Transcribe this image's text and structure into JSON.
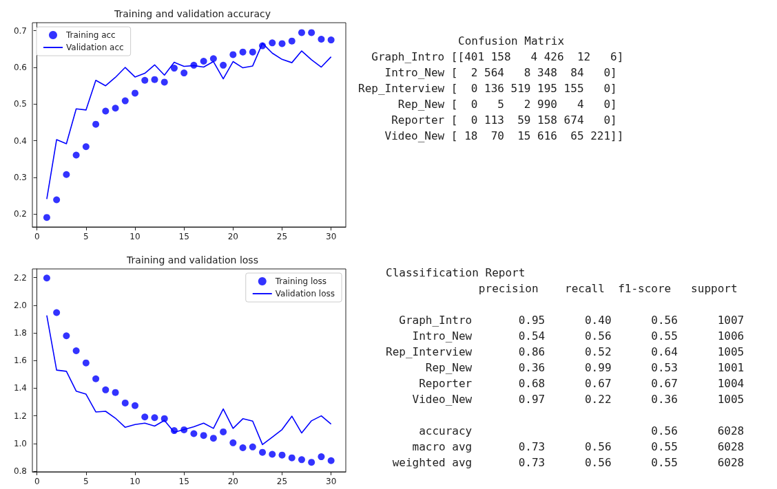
{
  "chart_data": [
    {
      "type": "line",
      "title": "Training and validation accuracy",
      "x": [
        1,
        2,
        3,
        4,
        5,
        6,
        7,
        8,
        9,
        10,
        11,
        12,
        13,
        14,
        15,
        16,
        17,
        18,
        19,
        20,
        21,
        22,
        23,
        24,
        25,
        26,
        27,
        28,
        29,
        30
      ],
      "series": [
        {
          "name": "Training acc",
          "type": "scatter",
          "marker": "circle",
          "color": "#0000ff",
          "values": [
            0.191,
            0.239,
            0.308,
            0.361,
            0.384,
            0.445,
            0.481,
            0.489,
            0.509,
            0.53,
            0.565,
            0.567,
            0.56,
            0.598,
            0.585,
            0.606,
            0.617,
            0.624,
            0.606,
            0.635,
            0.642,
            0.642,
            0.659,
            0.667,
            0.665,
            0.672,
            0.695,
            0.695,
            0.677,
            0.675
          ]
        },
        {
          "name": "Validation acc",
          "type": "line",
          "marker": "none",
          "color": "#0000ff",
          "values": [
            0.241,
            0.403,
            0.392,
            0.487,
            0.484,
            0.565,
            0.55,
            0.573,
            0.6,
            0.574,
            0.584,
            0.607,
            0.579,
            0.614,
            0.603,
            0.605,
            0.601,
            0.616,
            0.569,
            0.616,
            0.599,
            0.604,
            0.666,
            0.639,
            0.622,
            0.613,
            0.645,
            0.621,
            0.601,
            0.629
          ]
        }
      ],
      "xlim": [
        -0.47,
        31.5
      ],
      "xticks": [
        0,
        5,
        10,
        15,
        20,
        25,
        30
      ],
      "ylim": [
        0.165,
        0.722
      ],
      "yticks": [
        0.2,
        0.3,
        0.4,
        0.5,
        0.6,
        0.7
      ],
      "legend": "top left"
    },
    {
      "type": "other",
      "title": "Confusion Matrix",
      "annotations": [
        "  Graph_Intro [[401 158   4 426  12   6]",
        "    Intro_New [  2 564   8 348  84   0]",
        "Rep_Interview [  0 136 519 195 155   0]",
        "      Rep_New [  0   5   2 990   4   0]",
        "     Reporter [  0 113  59 158 674   0]",
        "    Video_New [ 18  70  15 616  65 221]]"
      ]
    },
    {
      "type": "line",
      "title": "Training and validation loss",
      "x": [
        1,
        2,
        3,
        4,
        5,
        6,
        7,
        8,
        9,
        10,
        11,
        12,
        13,
        14,
        15,
        16,
        17,
        18,
        19,
        20,
        21,
        22,
        23,
        24,
        25,
        26,
        27,
        28,
        29,
        30
      ],
      "series": [
        {
          "name": "Training loss",
          "type": "scatter",
          "marker": "circle",
          "color": "#0000ff",
          "values": [
            2.197,
            1.947,
            1.779,
            1.671,
            1.583,
            1.468,
            1.388,
            1.369,
            1.293,
            1.274,
            1.192,
            1.187,
            1.18,
            1.093,
            1.099,
            1.071,
            1.058,
            1.038,
            1.084,
            1.005,
            0.969,
            0.975,
            0.936,
            0.922,
            0.916,
            0.896,
            0.883,
            0.864,
            0.904,
            0.876
          ]
        },
        {
          "name": "Validation loss",
          "type": "line",
          "marker": "none",
          "color": "#0000ff",
          "values": [
            1.927,
            1.531,
            1.522,
            1.379,
            1.357,
            1.228,
            1.233,
            1.183,
            1.117,
            1.137,
            1.147,
            1.126,
            1.167,
            1.081,
            1.101,
            1.121,
            1.147,
            1.109,
            1.25,
            1.109,
            1.179,
            1.162,
            0.992,
            1.046,
            1.101,
            1.197,
            1.076,
            1.164,
            1.2,
            1.14
          ]
        }
      ],
      "xlim": [
        -0.47,
        31.5
      ],
      "xticks": [
        0,
        5,
        10,
        15,
        20,
        25,
        30
      ],
      "ylim": [
        0.795,
        2.263
      ],
      "yticks": [
        0.8,
        {
          "value": 1.0,
          "label": "1.0"
        },
        1.2,
        1.4,
        1.6,
        1.8,
        {
          "value": 2.0,
          "label": "2.0"
        },
        2.2
      ],
      "legend": "top right"
    },
    {
      "type": "other",
      "title": "Classification Report",
      "annotations": [
        "              precision    recall  f1-score   support",
        "  Graph_Intro       0.95      0.40      0.56      1007",
        "    Intro_New       0.54      0.56      0.55      1006",
        "Rep_Interview       0.86      0.52      0.64      1005",
        "      Rep_New       0.36      0.99      0.53      1001",
        "     Reporter       0.68      0.67      0.67      1004",
        "    Video_New       0.97      0.22      0.36      1005",
        "     accuracy                           0.56      6028",
        "    macro avg       0.73      0.56      0.55      6028",
        " weighted avg       0.73      0.56      0.55      6028"
      ]
    }
  ]
}
